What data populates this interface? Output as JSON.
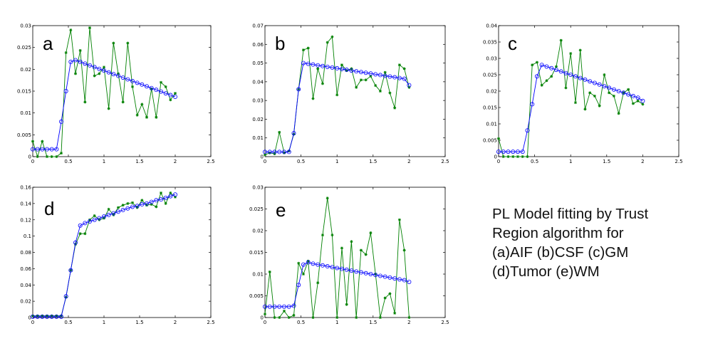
{
  "caption": {
    "lines": [
      "PL Model fitting by Trust",
      "Region algorithm for",
      "(a)AIF (b)CSF (c)GM",
      "(d)Tumor (e)WM"
    ]
  },
  "colors": {
    "measured": "#008000",
    "fitted": "#0000ff",
    "axes": "#000000"
  },
  "chart_data": [
    {
      "type": "line",
      "panel": "a",
      "xlim": [
        0,
        2.5
      ],
      "ylim": [
        0,
        0.03
      ],
      "xticks": [
        "0",
        "0.5",
        "1",
        "1.5",
        "2",
        "2.5"
      ],
      "yticks": [
        "0",
        "0.005",
        "0.01",
        "0.015",
        "0.02",
        "0.025",
        "0.03"
      ],
      "x": [
        0,
        0.0667,
        0.1333,
        0.2,
        0.2667,
        0.3333,
        0.4,
        0.4667,
        0.5333,
        0.6,
        0.6667,
        0.7333,
        0.8,
        0.8667,
        0.9333,
        1.0,
        1.0667,
        1.1333,
        1.2,
        1.2667,
        1.3333,
        1.4,
        1.4667,
        1.5333,
        1.6,
        1.6667,
        1.7333,
        1.8,
        1.8667,
        1.9333,
        2.0
      ],
      "series": [
        {
          "style": "green-star",
          "values": [
            0.0035,
            0.0,
            0.0035,
            0.0,
            0.0,
            0.0,
            0.0008,
            0.0238,
            0.029,
            0.019,
            0.0243,
            0.0125,
            0.0295,
            0.0185,
            0.019,
            0.0205,
            0.011,
            0.026,
            0.019,
            0.0125,
            0.026,
            0.016,
            0.0095,
            0.012,
            0.009,
            0.0155,
            0.009,
            0.017,
            0.016,
            0.013,
            0.0145
          ]
        },
        {
          "style": "blue-circle",
          "values": [
            0.0017,
            0.0017,
            0.0017,
            0.0017,
            0.0017,
            0.0017,
            0.008,
            0.015,
            0.0217,
            0.0221,
            0.0217,
            0.0213,
            0.0209,
            0.0205,
            0.0201,
            0.0197,
            0.0193,
            0.0189,
            0.0185,
            0.0181,
            0.0177,
            0.0173,
            0.0169,
            0.0165,
            0.0161,
            0.0157,
            0.0153,
            0.0149,
            0.0145,
            0.0141,
            0.0137
          ]
        }
      ]
    },
    {
      "type": "line",
      "panel": "b",
      "xlim": [
        0,
        2.5
      ],
      "ylim": [
        0,
        0.07
      ],
      "xticks": [
        "0",
        "0.5",
        "1",
        "1.5",
        "2",
        "2.5"
      ],
      "yticks": [
        "0",
        "0.01",
        "0.02",
        "0.03",
        "0.04",
        "0.05",
        "0.06",
        "0.07"
      ],
      "x": [
        0,
        0.0667,
        0.1333,
        0.2,
        0.2667,
        0.3333,
        0.4,
        0.4667,
        0.5333,
        0.6,
        0.6667,
        0.7333,
        0.8,
        0.8667,
        0.9333,
        1.0,
        1.0667,
        1.1333,
        1.2,
        1.2667,
        1.3333,
        1.4,
        1.4667,
        1.5333,
        1.6,
        1.6667,
        1.7333,
        1.8,
        1.8667,
        1.9333,
        2.0
      ],
      "series": [
        {
          "style": "green-star",
          "values": [
            0.001,
            0.002,
            0.0015,
            0.013,
            0.002,
            0.003,
            0.012,
            0.036,
            0.057,
            0.058,
            0.031,
            0.047,
            0.039,
            0.061,
            0.064,
            0.033,
            0.049,
            0.046,
            0.047,
            0.037,
            0.041,
            0.041,
            0.043,
            0.038,
            0.035,
            0.045,
            0.034,
            0.026,
            0.049,
            0.047,
            0.037
          ]
        },
        {
          "style": "blue-circle",
          "values": [
            0.0025,
            0.0025,
            0.0025,
            0.0025,
            0.0025,
            0.0025,
            0.0125,
            0.036,
            0.05,
            0.0496,
            0.0492,
            0.0488,
            0.0484,
            0.048,
            0.0476,
            0.0472,
            0.0468,
            0.0464,
            0.046,
            0.0456,
            0.0452,
            0.0448,
            0.0444,
            0.044,
            0.0436,
            0.0432,
            0.0428,
            0.0424,
            0.042,
            0.0416,
            0.0382
          ]
        }
      ]
    },
    {
      "type": "line",
      "panel": "c",
      "xlim": [
        0,
        2.5
      ],
      "ylim": [
        0,
        0.04
      ],
      "xticks": [
        "0",
        "0.5",
        "1",
        "1.5",
        "2",
        "2.5"
      ],
      "yticks": [
        "0",
        "0.005",
        "0.01",
        "0.015",
        "0.02",
        "0.025",
        "0.03",
        "0.035",
        "0.04"
      ],
      "x": [
        0,
        0.0667,
        0.1333,
        0.2,
        0.2667,
        0.3333,
        0.4,
        0.4667,
        0.5333,
        0.6,
        0.6667,
        0.7333,
        0.8,
        0.8667,
        0.9333,
        1.0,
        1.0667,
        1.1333,
        1.2,
        1.2667,
        1.3333,
        1.4,
        1.4667,
        1.5333,
        1.6,
        1.6667,
        1.7333,
        1.8,
        1.8667,
        1.9333,
        2.0
      ],
      "series": [
        {
          "style": "green-star",
          "values": [
            0.0055,
            0.0,
            0.0,
            0.0,
            0.0,
            0.0,
            0.0,
            0.028,
            0.0288,
            0.0218,
            0.0232,
            0.0245,
            0.0275,
            0.0355,
            0.021,
            0.0315,
            0.0165,
            0.0325,
            0.0145,
            0.0195,
            0.0185,
            0.0155,
            0.025,
            0.0195,
            0.0185,
            0.0132,
            0.0195,
            0.0205,
            0.0162,
            0.017,
            0.016
          ]
        },
        {
          "style": "blue-circle",
          "values": [
            0.0015,
            0.0015,
            0.0015,
            0.0015,
            0.0015,
            0.0015,
            0.008,
            0.016,
            0.0245,
            0.028,
            0.0275,
            0.027,
            0.0265,
            0.026,
            0.0255,
            0.025,
            0.0245,
            0.024,
            0.0235,
            0.023,
            0.0225,
            0.022,
            0.0215,
            0.021,
            0.0205,
            0.02,
            0.0195,
            0.019,
            0.0185,
            0.018,
            0.017
          ]
        }
      ]
    },
    {
      "type": "line",
      "panel": "d",
      "xlim": [
        0,
        2.5
      ],
      "ylim": [
        0,
        0.16
      ],
      "xticks": [
        "0",
        "0.5",
        "1",
        "1.5",
        "2",
        "2.5"
      ],
      "yticks": [
        "0",
        "0.02",
        "0.04",
        "0.06",
        "0.08",
        "0.1",
        "0.12",
        "0.14",
        "0.16"
      ],
      "x": [
        0,
        0.0667,
        0.1333,
        0.2,
        0.2667,
        0.3333,
        0.4,
        0.4667,
        0.5333,
        0.6,
        0.6667,
        0.7333,
        0.8,
        0.8667,
        0.9333,
        1.0,
        1.0667,
        1.1333,
        1.2,
        1.2667,
        1.3333,
        1.4,
        1.4667,
        1.5333,
        1.6,
        1.6667,
        1.7333,
        1.8,
        1.8667,
        1.9333,
        2.0
      ],
      "series": [
        {
          "style": "green-star",
          "values": [
            0.002,
            0.002,
            0.002,
            0.002,
            0.002,
            0.002,
            0.002,
            0.025,
            0.058,
            0.09,
            0.103,
            0.103,
            0.12,
            0.125,
            0.12,
            0.122,
            0.133,
            0.126,
            0.135,
            0.138,
            0.14,
            0.141,
            0.135,
            0.144,
            0.138,
            0.139,
            0.136,
            0.153,
            0.14,
            0.153,
            0.148
          ]
        },
        {
          "style": "blue-circle",
          "values": [
            0.001,
            0.001,
            0.001,
            0.001,
            0.001,
            0.001,
            0.001,
            0.026,
            0.058,
            0.092,
            0.113,
            0.116,
            0.118,
            0.12,
            0.122,
            0.124,
            0.126,
            0.128,
            0.13,
            0.132,
            0.134,
            0.136,
            0.137,
            0.139,
            0.14,
            0.142,
            0.144,
            0.145,
            0.147,
            0.149,
            0.151
          ]
        }
      ]
    },
    {
      "type": "line",
      "panel": "e",
      "xlim": [
        0,
        2.5
      ],
      "ylim": [
        0,
        0.03
      ],
      "xticks": [
        "0",
        "0.5",
        "1",
        "1.5",
        "2",
        "2.5"
      ],
      "yticks": [
        "0",
        "0.005",
        "0.01",
        "0.015",
        "0.02",
        "0.025",
        "0.03"
      ],
      "x": [
        0,
        0.0667,
        0.1333,
        0.2,
        0.2667,
        0.3333,
        0.4,
        0.4667,
        0.5333,
        0.6,
        0.6667,
        0.7333,
        0.8,
        0.8667,
        0.9333,
        1.0,
        1.0667,
        1.1333,
        1.2,
        1.2667,
        1.3333,
        1.4,
        1.4667,
        1.5333,
        1.6,
        1.6667,
        1.7333,
        1.8,
        1.8667,
        1.9333,
        2.0
      ],
      "series": [
        {
          "style": "green-star",
          "values": [
            0.0008,
            0.0105,
            0.0,
            0.0,
            0.0015,
            0.0,
            0.0005,
            0.0125,
            0.01,
            0.013,
            0.0,
            0.008,
            0.019,
            0.0275,
            0.019,
            0.0,
            0.016,
            0.003,
            0.0175,
            0.0,
            0.0155,
            0.0145,
            0.0195,
            0.01,
            0.0,
            0.0045,
            0.0055,
            0.001,
            0.0225,
            0.0155,
            0.0
          ]
        },
        {
          "style": "blue-circle",
          "values": [
            0.0025,
            0.0025,
            0.0025,
            0.0025,
            0.0025,
            0.0025,
            0.0027,
            0.0075,
            0.0122,
            0.0127,
            0.0124,
            0.0122,
            0.012,
            0.0118,
            0.0116,
            0.0114,
            0.0112,
            0.011,
            0.0108,
            0.0106,
            0.0104,
            0.0102,
            0.01,
            0.0098,
            0.0096,
            0.0094,
            0.0092,
            0.009,
            0.0088,
            0.0086,
            0.0082
          ]
        }
      ]
    }
  ]
}
